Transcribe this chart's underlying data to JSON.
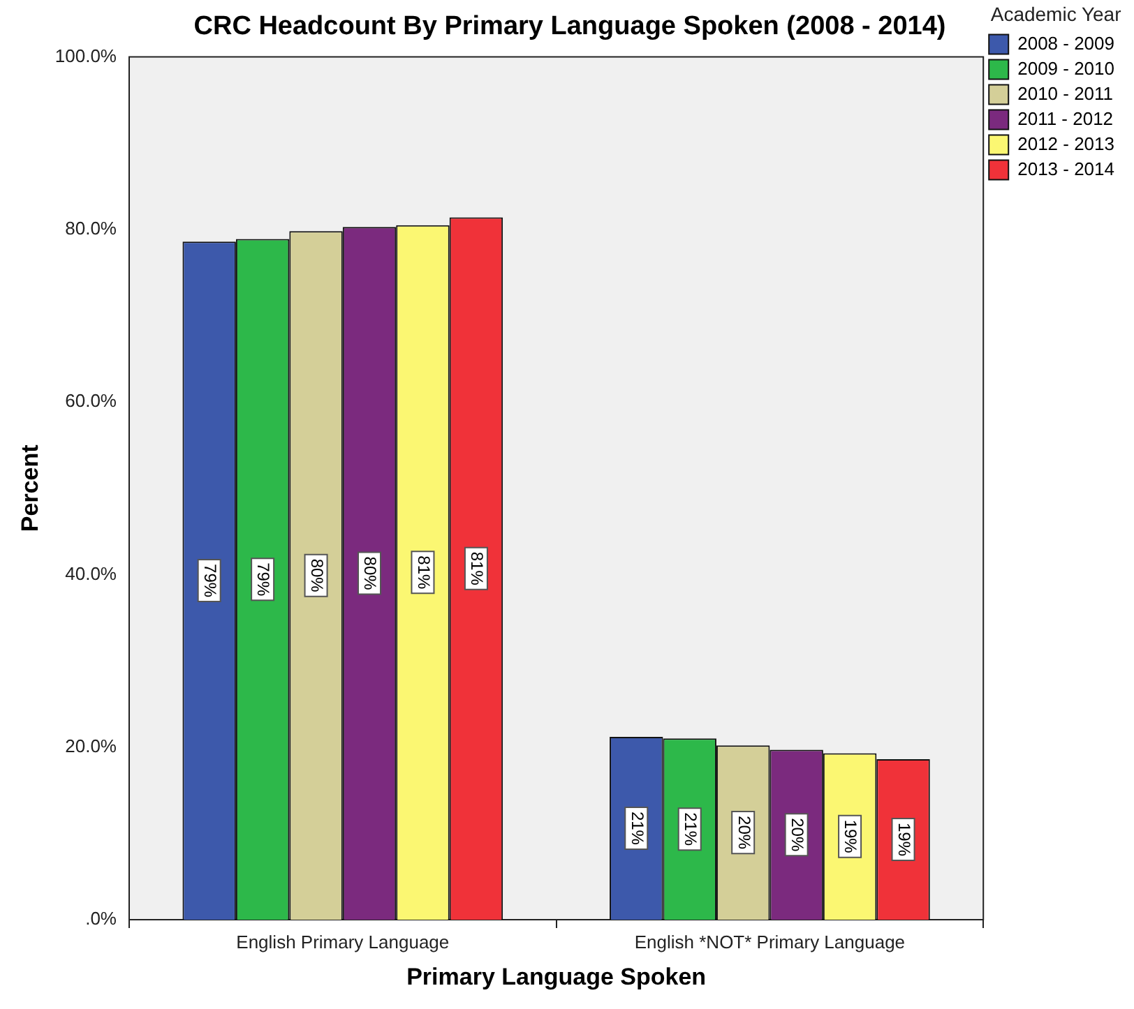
{
  "chart_data": {
    "type": "bar",
    "title": "CRC Headcount By Primary Language Spoken (2008 - 2014)",
    "xlabel": "Primary Language Spoken",
    "ylabel": "Percent",
    "legend_title": "Academic Year",
    "categories": [
      "English Primary Language",
      "English *NOT* Primary Language"
    ],
    "series": [
      {
        "name": "2008 - 2009",
        "color": "#3d59ab",
        "values": [
          78.6,
          21.2
        ],
        "value_labels": [
          "79%",
          "21%"
        ]
      },
      {
        "name": "2009 - 2010",
        "color": "#2db84a",
        "values": [
          78.9,
          21.0
        ],
        "value_labels": [
          "79%",
          "21%"
        ]
      },
      {
        "name": "2010 - 2011",
        "color": "#d4cf98",
        "values": [
          79.8,
          20.2
        ],
        "value_labels": [
          "80%",
          "20%"
        ]
      },
      {
        "name": "2011 - 2012",
        "color": "#7b2a7e",
        "values": [
          80.3,
          19.7
        ],
        "value_labels": [
          "80%",
          "20%"
        ]
      },
      {
        "name": "2012 - 2013",
        "color": "#fbf772",
        "values": [
          80.5,
          19.3
        ],
        "value_labels": [
          "81%",
          "19%"
        ]
      },
      {
        "name": "2013 - 2014",
        "color": "#f03239",
        "values": [
          81.4,
          18.6
        ],
        "value_labels": [
          "81%",
          "19%"
        ]
      }
    ],
    "ylim": [
      0,
      100
    ],
    "yticks": [
      {
        "value": 0,
        "label": ".0%"
      },
      {
        "value": 20,
        "label": "20.0%"
      },
      {
        "value": 40,
        "label": "40.0%"
      },
      {
        "value": 60,
        "label": "60.0%"
      },
      {
        "value": 80,
        "label": "80.0%"
      },
      {
        "value": 100,
        "label": "100.0%"
      }
    ],
    "grid": false,
    "legend": "top right"
  }
}
